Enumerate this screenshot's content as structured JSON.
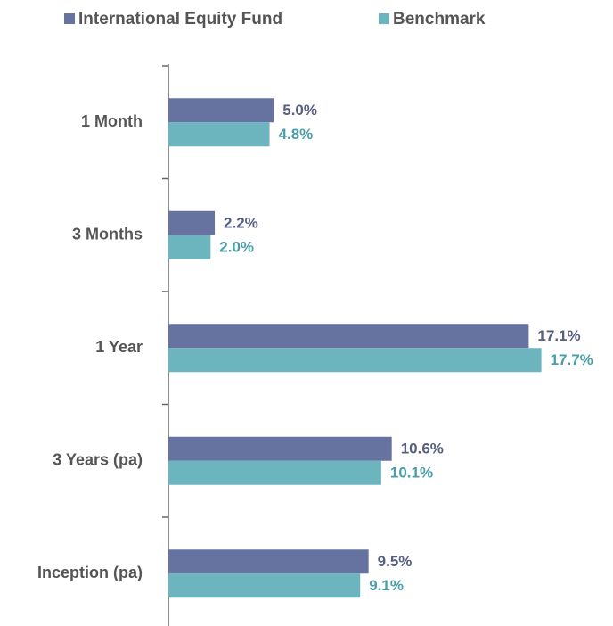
{
  "chart_data": {
    "type": "bar",
    "orientation": "horizontal",
    "categories": [
      "1 Month",
      "3 Months",
      "1 Year",
      "3 Years (pa)",
      "Inception (pa)"
    ],
    "series": [
      {
        "name": "International Equity Fund",
        "color": "#6673a0",
        "label_color": "#565f80",
        "values": [
          5.0,
          2.2,
          17.1,
          10.6,
          9.5
        ],
        "value_labels": [
          "5.0%",
          "2.2%",
          "17.1%",
          "10.6%",
          "9.5%"
        ]
      },
      {
        "name": "Benchmark",
        "color": "#6cb5bf",
        "label_color": "#4a9ea8",
        "values": [
          4.8,
          2.0,
          17.7,
          10.1,
          9.1
        ],
        "value_labels": [
          "4.8%",
          "2.0%",
          "17.7%",
          "10.1%",
          "9.1%"
        ]
      }
    ],
    "xlim": [
      0,
      20
    ],
    "legend": "top"
  }
}
